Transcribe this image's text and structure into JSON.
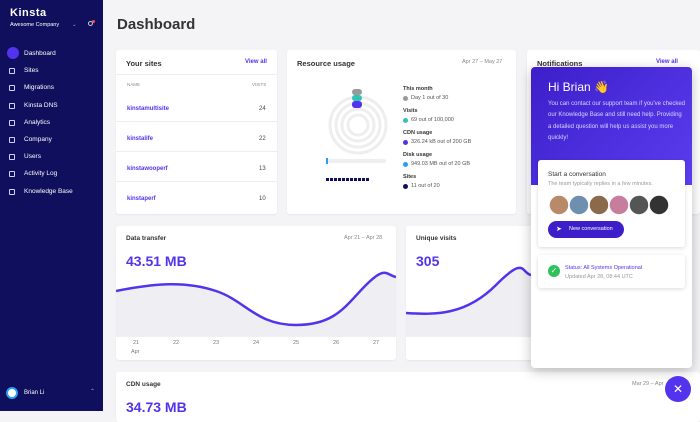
{
  "sidebar": {
    "logo": "Kinsta",
    "company": "Awesome Company",
    "nav": [
      "Dashboard",
      "Sites",
      "Migrations",
      "Kinsta DNS",
      "Analytics",
      "Company",
      "Users",
      "Activity Log",
      "Knowledge Base"
    ],
    "user": "Brian Li"
  },
  "header": {
    "title": "Dashboard"
  },
  "your_sites": {
    "title": "Your sites",
    "link": "View all",
    "columns": [
      "NAME",
      "VISITS"
    ],
    "rows": [
      [
        "kinstamultisite",
        "24"
      ],
      [
        "kinstalife",
        "22"
      ],
      [
        "kinstawooperf",
        "13"
      ],
      [
        "kinstaperf",
        "10"
      ]
    ]
  },
  "resource_usage": {
    "title": "Resource usage",
    "dates": "Apr 27 – May 27",
    "items": [
      {
        "label": "This month",
        "detail": "Day 1 out of 30"
      },
      {
        "label": "Visits",
        "detail": "69 out of 100,000"
      },
      {
        "label": "CDN usage",
        "detail": "326.24 kB out of 200 GB"
      },
      {
        "label": "Disk usage",
        "detail": "949.03 MB out of 20 GB"
      },
      {
        "label": "Sites",
        "detail": "11 out of 20"
      }
    ]
  },
  "notifications": {
    "title": "Notifications",
    "link": "View all"
  },
  "data_transfer": {
    "title": "Data transfer",
    "dates": "Apr 21 – Apr 28",
    "total": "43.51 MB",
    "x_labels": [
      "21",
      "22",
      "23",
      "24",
      "25",
      "26",
      "27"
    ],
    "month": "Apr"
  },
  "unique_visits": {
    "title": "Unique visits",
    "total": "305"
  },
  "cdn_usage": {
    "title": "CDN usage",
    "dates": "Mar 29 – Apr",
    "total": "34.73 MB"
  },
  "chat": {
    "greeting": "Hi Brian 👋",
    "intro": "You can contact our support team if you've checked our Knowledge Base and still need help. Providing a detailed question will help us assist you more quickly!",
    "start_title": "Start a conversation",
    "start_note": "The team typically replies in a few minutes.",
    "button": "New conversation",
    "status": "Status: All Systems Operational",
    "updated": "Updated Apr 28, 08:44 UTC"
  }
}
